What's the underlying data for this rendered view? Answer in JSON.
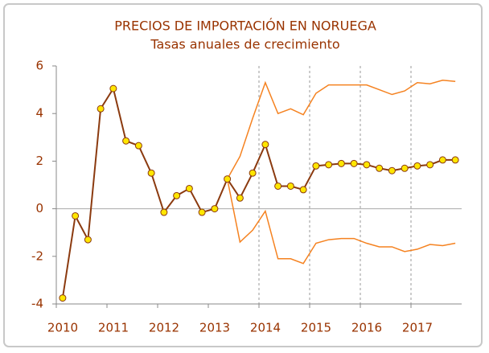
{
  "chart_data": {
    "type": "line",
    "title": "PRECIOS DE IMPORTACIÓN EN NORUEGA",
    "subtitle": "Tasas anuales de crecimiento",
    "x": [
      2010.125,
      2010.375,
      2010.625,
      2010.875,
      2011.125,
      2011.375,
      2011.625,
      2011.875,
      2012.125,
      2012.375,
      2012.625,
      2012.875,
      2013.125,
      2013.375,
      2013.625,
      2013.875,
      2014.125,
      2014.375,
      2014.625,
      2014.875,
      2015.125,
      2015.375,
      2015.625,
      2015.875,
      2016.125,
      2016.375,
      2016.625,
      2016.875,
      2017.125,
      2017.375,
      2017.625,
      2017.875
    ],
    "series": [
      {
        "color": "#f58220",
        "values": [
          null,
          null,
          null,
          null,
          null,
          null,
          null,
          null,
          null,
          null,
          null,
          null,
          null,
          1.25,
          2.2,
          3.8,
          5.3,
          4.0,
          4.2,
          3.95,
          4.85,
          5.2,
          5.2,
          5.2,
          5.2,
          5.0,
          4.8,
          4.95,
          5.3,
          5.25,
          5.4,
          5.35
        ]
      },
      {
        "color": "#f58220",
        "values": [
          null,
          null,
          null,
          null,
          null,
          null,
          null,
          null,
          null,
          null,
          null,
          null,
          null,
          1.25,
          -1.4,
          -0.9,
          -0.1,
          -2.1,
          -2.1,
          -2.3,
          -1.45,
          -1.3,
          -1.25,
          -1.25,
          -1.45,
          -1.6,
          -1.6,
          -1.8,
          -1.7,
          -1.5,
          -1.55,
          -1.45
        ]
      },
      {
        "color": "#8b3a0f",
        "marker_color": "#ffe600",
        "markers": true,
        "values": [
          -3.75,
          -0.3,
          -1.3,
          4.2,
          5.05,
          2.85,
          2.65,
          1.5,
          -0.15,
          0.55,
          0.85,
          -0.15,
          0.0,
          1.25,
          0.45,
          1.5,
          2.7,
          0.95,
          0.95,
          0.8,
          1.8,
          1.85,
          1.9,
          1.9,
          1.85,
          1.7,
          1.6,
          1.7,
          1.8,
          1.85,
          2.05,
          2.05
        ]
      }
    ],
    "xlim": [
      2010,
      2018
    ],
    "xticks": [
      2010,
      2011,
      2012,
      2013,
      2014,
      2015,
      2016,
      2017
    ],
    "xgrid": [
      2014,
      2015,
      2016,
      2017
    ],
    "ylim": [
      -4,
      6
    ],
    "yticks": [
      -4,
      -2,
      0,
      2,
      4,
      6
    ]
  }
}
